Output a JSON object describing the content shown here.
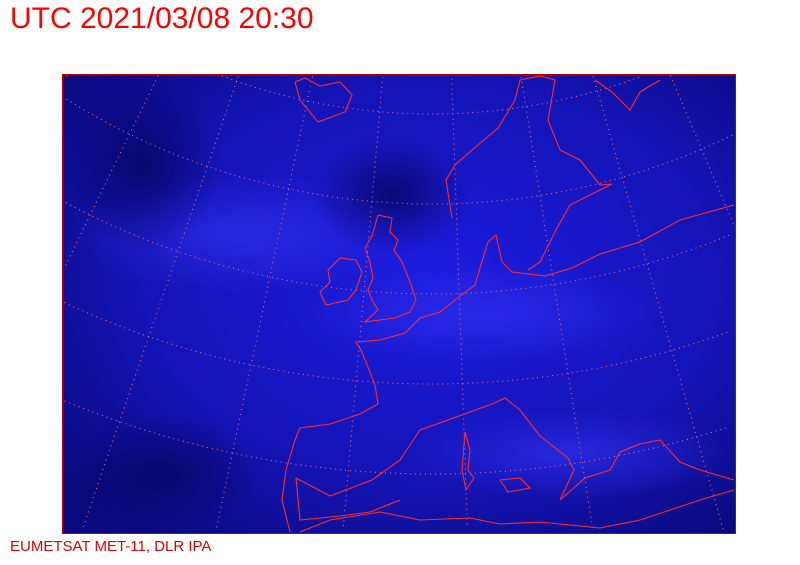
{
  "header": {
    "title": "UTC 2021/03/08 20:30"
  },
  "footer": {
    "credit": "EUMETSAT MET-11, DLR IPA"
  },
  "map": {
    "layer": "satellite-infrared-composite",
    "background_color": "#1414c8",
    "coastline_color": "#ff2020",
    "graticule_color": "#ff6060",
    "frame_color": "#c00000"
  }
}
